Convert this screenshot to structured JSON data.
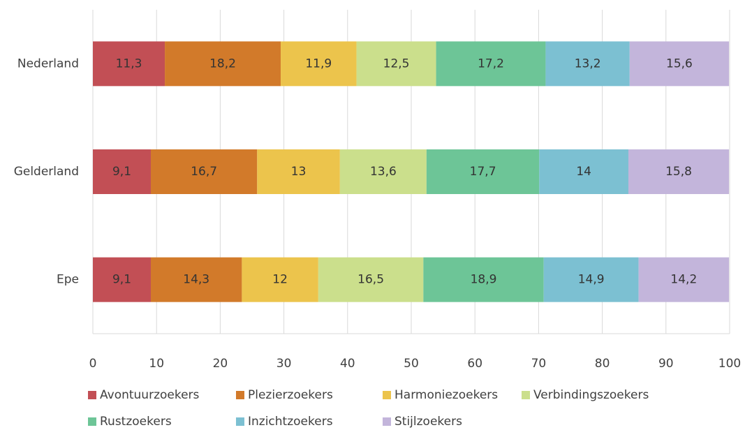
{
  "chart_data": {
    "type": "stacked-bar-horizontal",
    "categories": [
      "Nederland",
      "Gelderland",
      "Epe"
    ],
    "series": [
      {
        "name": "Avontuurzoekers",
        "color": "#c24f55",
        "values": [
          11.3,
          9.1,
          9.1
        ],
        "value_labels": [
          "11,3",
          "9,1",
          "9,1"
        ]
      },
      {
        "name": "Plezierzoekers",
        "color": "#d27a2a",
        "values": [
          18.2,
          16.7,
          14.3
        ],
        "value_labels": [
          "18,2",
          "16,7",
          "14,3"
        ]
      },
      {
        "name": "Harmoniezoekers",
        "color": "#ecc44c",
        "values": [
          11.9,
          13,
          12
        ],
        "value_labels": [
          "11,9",
          "13",
          "12"
        ]
      },
      {
        "name": "Verbindingszoekers",
        "color": "#cbdf8c",
        "values": [
          12.5,
          13.6,
          16.5
        ],
        "value_labels": [
          "12,5",
          "13,6",
          "16,5"
        ]
      },
      {
        "name": "Rustzoekers",
        "color": "#6dc597",
        "values": [
          17.2,
          17.7,
          18.9
        ],
        "value_labels": [
          "17,2",
          "17,7",
          "18,9"
        ]
      },
      {
        "name": "Inzichtzoekers",
        "color": "#7cc0d2",
        "values": [
          13.2,
          14,
          14.9
        ],
        "value_labels": [
          "13,2",
          "14",
          "14,9"
        ]
      },
      {
        "name": "Stijlzoekers",
        "color": "#c3b5db",
        "values": [
          15.6,
          15.8,
          14.2
        ],
        "value_labels": [
          "15,6",
          "15,8",
          "14,2"
        ]
      }
    ],
    "xlim": [
      0,
      100
    ],
    "xticks": [
      0,
      10,
      20,
      30,
      40,
      50,
      60,
      70,
      80,
      90,
      100
    ],
    "grid": true
  }
}
